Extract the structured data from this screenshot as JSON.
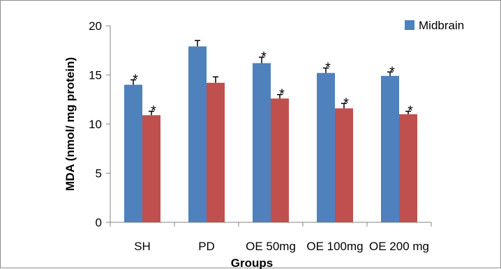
{
  "chart_data": {
    "type": "bar",
    "title": "",
    "xlabel": "Groups",
    "ylabel": "MDA (nmol/ mg protein)",
    "categories": [
      "SH",
      "PD",
      "OE 50mg",
      "OE 100mg",
      "OE 200 mg"
    ],
    "ylim": [
      0,
      20
    ],
    "yticks": [
      0,
      5,
      10,
      15,
      20
    ],
    "grid": false,
    "legend_position": "top-right",
    "series": [
      {
        "name": "Midbrain",
        "color": "#4f81bd",
        "values": [
          14.0,
          17.9,
          16.2,
          15.2,
          14.9
        ],
        "errors": [
          0.5,
          0.6,
          0.6,
          0.5,
          0.4
        ],
        "significance": [
          "*",
          "",
          "*",
          "*",
          "*"
        ]
      },
      {
        "color": "#c0504d",
        "values": [
          10.9,
          14.2,
          12.6,
          11.6,
          11.0
        ],
        "errors": [
          0.4,
          0.6,
          0.4,
          0.5,
          0.3
        ],
        "significance": [
          "*",
          "",
          "*",
          "*",
          "*"
        ]
      }
    ]
  }
}
